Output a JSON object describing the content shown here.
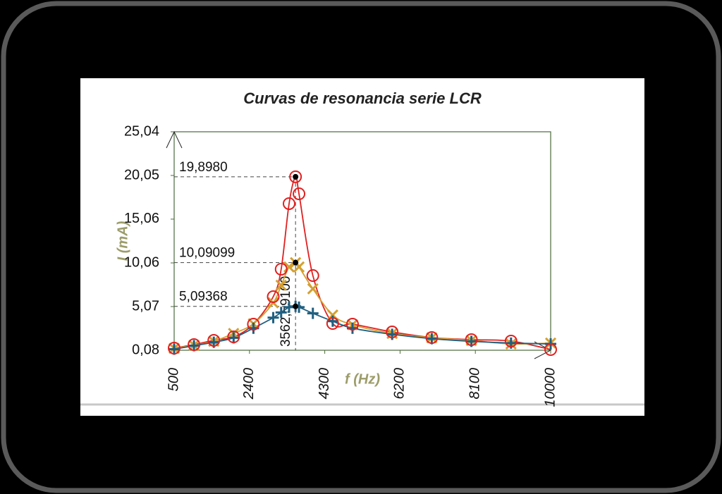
{
  "chart_data": {
    "type": "line",
    "title": "Curvas de resonancia serie LCR",
    "x_label": "f (Hz)",
    "y_label": "I (mA)",
    "x": [
      500,
      1000,
      1500,
      2000,
      2500,
      3000,
      3200,
      3400,
      3562.591,
      3650,
      4000,
      4500,
      5000,
      6000,
      7000,
      8000,
      9000,
      10000
    ],
    "series": [
      {
        "color": "#e02020",
        "marker": "circle",
        "values": [
          0.32,
          0.72,
          1.21,
          1.61,
          3.06,
          6.2,
          9.34,
          16.83,
          19.898,
          17.95,
          8.61,
          3.14,
          3.06,
          2.17,
          1.53,
          1.29,
          1.13,
          0.16
        ]
      },
      {
        "color": "#d4a030",
        "marker": "x",
        "values": [
          0.3,
          0.65,
          1.1,
          2.0,
          3.1,
          5.5,
          7.5,
          9.6,
          10.09099,
          9.6,
          7.1,
          4.1,
          3.0,
          2.0,
          1.5,
          1.2,
          0.8,
          0.9
        ]
      },
      {
        "color": "#1f5f80",
        "marker": "plus",
        "values": [
          0.2,
          0.6,
          1.0,
          1.5,
          2.6,
          3.8,
          4.4,
          5.0,
          5.09368,
          5.0,
          4.3,
          3.4,
          2.6,
          1.9,
          1.4,
          1.1,
          0.9,
          0.8
        ]
      }
    ],
    "resonance": {
      "f0": 3562.591,
      "f0_label": "3562,59100",
      "peaks": [
        {
          "value": 19.898,
          "label": "19,8980"
        },
        {
          "value": 10.09099,
          "label": "10,09099"
        },
        {
          "value": 5.09368,
          "label": "5,09368"
        }
      ]
    },
    "xlim": [
      500,
      10000
    ],
    "xticks": [
      500,
      2400,
      4300,
      6200,
      8100,
      10000
    ],
    "ylim": [
      0.08,
      25.04
    ],
    "yticks": [
      {
        "value": 0.08,
        "label": "0,08"
      },
      {
        "value": 5.07,
        "label": "5,07"
      },
      {
        "value": 10.06,
        "label": "10,06"
      },
      {
        "value": 15.06,
        "label": "15,06"
      },
      {
        "value": 20.05,
        "label": "20,05"
      },
      {
        "value": 25.04,
        "label": "25,04"
      }
    ],
    "grid": false
  }
}
